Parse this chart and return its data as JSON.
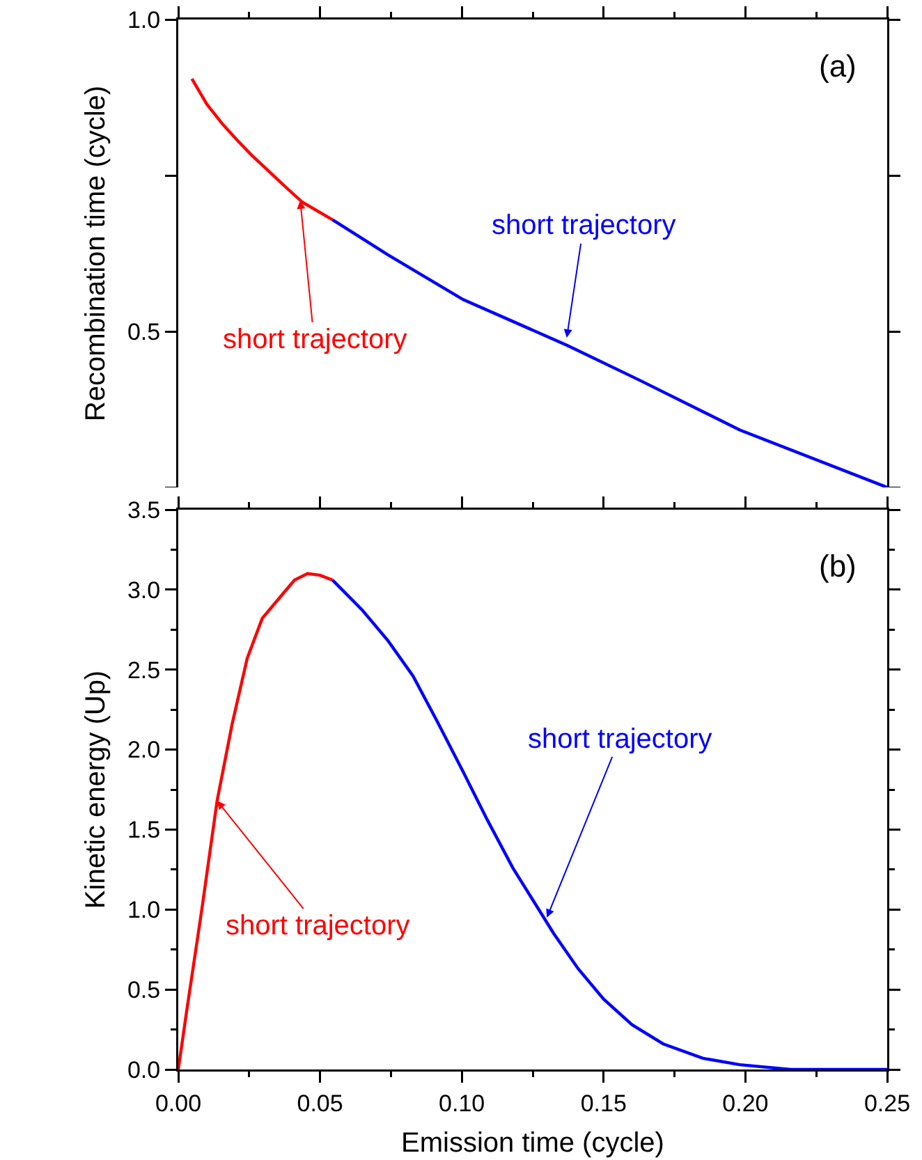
{
  "chart_data": [
    {
      "type": "line",
      "ylabel": "Recombination time (cycle)",
      "xlim": [
        0,
        0.25
      ],
      "ylim": [
        0.25,
        1.0
      ],
      "xticks": [
        0,
        0.05,
        0.1,
        0.15,
        0.2,
        0.25
      ],
      "yticks": [
        {
          "value": 0.25,
          "label": null
        },
        0.5,
        {
          "value": 0.75,
          "label": null
        },
        {
          "value": 1.0,
          "label": "1.0"
        }
      ],
      "tick_labels": "y",
      "legend": false,
      "grid": false,
      "marker": "none",
      "line_style": "solid",
      "series": [
        {
          "color": "#ff0000",
          "x": [
            0.0048,
            0.0101,
            0.0155,
            0.0207,
            0.026,
            0.0314,
            0.0375,
            0.0438,
            0.0544
          ],
          "values": [
            0.905,
            0.864,
            0.833,
            0.807,
            0.782,
            0.759,
            0.733,
            0.707,
            0.679
          ]
        },
        {
          "color": "#0000ff",
          "x": [
            0.0544,
            0.0739,
            0.1005,
            0.137,
            0.1626,
            0.198,
            0.25
          ],
          "values": [
            0.679,
            0.623,
            0.551,
            0.478,
            0.422,
            0.342,
            0.25
          ]
        }
      ],
      "annotations": [
        "(a)",
        {
          "text": "short trajectory",
          "x": 0.043,
          "y": 0.71
        },
        {
          "text": "short trajectory",
          "x": 0.137,
          "y": 0.49
        }
      ]
    },
    {
      "type": "line",
      "xlabel": "Emission time (cycle)",
      "ylabel": "Kinetic energy (Up)",
      "xlim": [
        0,
        0.25
      ],
      "ylim": [
        0,
        3.5
      ],
      "xticks": [
        {
          "value": 0,
          "label": "0.00"
        },
        {
          "value": 0.05,
          "label": "0.05"
        },
        {
          "value": 0.1,
          "label": "0.10"
        },
        {
          "value": 0.15,
          "label": "0.15"
        },
        {
          "value": 0.2,
          "label": "0.20"
        },
        {
          "value": 0.25,
          "label": "0.25"
        }
      ],
      "yticks": [
        {
          "value": 0,
          "label": "0.0"
        },
        0.5,
        {
          "value": 1,
          "label": "1.0"
        },
        1.5,
        {
          "value": 2,
          "label": "2.0"
        },
        2.5,
        {
          "value": 3,
          "label": "3.0"
        },
        3.5
      ],
      "legend": false,
      "grid": false,
      "marker": "none",
      "line_style": "solid",
      "series": [
        {
          "color": "#ff0000",
          "x": [
            0,
            0.003,
            0.0083,
            0.0137,
            0.019,
            0.0243,
            0.0296,
            0.0367,
            0.041,
            0.0456,
            0.05,
            0.0544
          ],
          "values": [
            0,
            0.37,
            1.0,
            1.68,
            2.16,
            2.57,
            2.82,
            2.97,
            3.06,
            3.1,
            3.09,
            3.06
          ]
        },
        {
          "color": "#0000ff",
          "x": [
            0.0544,
            0.065,
            0.074,
            0.0828,
            0.0915,
            0.1005,
            0.109,
            0.118,
            0.1324,
            0.141,
            0.15,
            0.16,
            0.171,
            0.185,
            0.198,
            0.216,
            0.25
          ],
          "values": [
            3.06,
            2.87,
            2.68,
            2.46,
            2.17,
            1.86,
            1.56,
            1.26,
            0.85,
            0.63,
            0.44,
            0.28,
            0.16,
            0.07,
            0.03,
            0.0,
            0.0
          ]
        }
      ],
      "annotations": [
        "(b)",
        {
          "text": "short trajectory",
          "x": 0.0137,
          "y": 1.68
        },
        {
          "text": "short trajectory",
          "x": 0.13,
          "y": 0.95
        }
      ]
    }
  ]
}
